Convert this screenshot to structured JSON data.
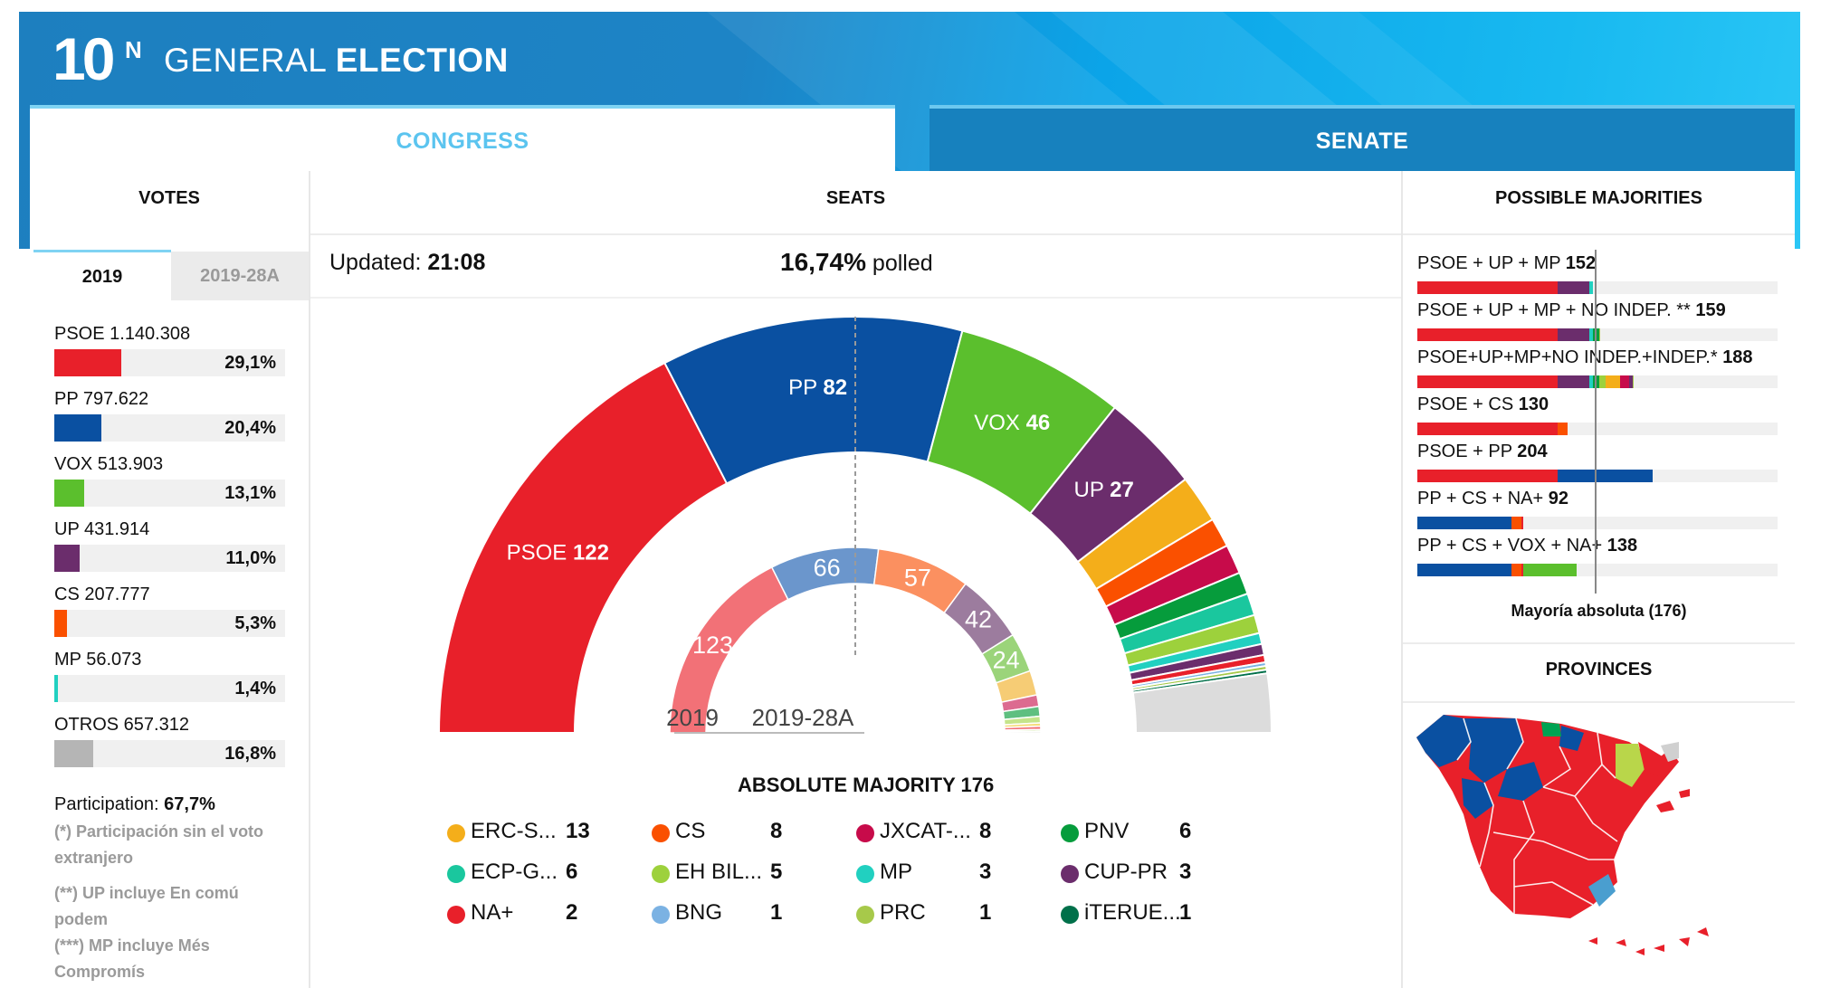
{
  "header": {
    "logo_number": "10",
    "logo_letter": "N",
    "title_light": "GENERAL ",
    "title_bold": "ELECTION"
  },
  "tabs": [
    {
      "label": "CONGRESS"
    },
    {
      "label": "SENATE"
    }
  ],
  "sections": {
    "votes": "VOTES",
    "seats": "SEATS",
    "majorities": "POSSIBLE MAJORITIES",
    "provinces": "PROVINCES"
  },
  "votes": {
    "tabs": [
      "2019",
      "2019-28A"
    ],
    "rows": [
      {
        "name": "PSOE",
        "votes": "1.140.308",
        "pct": "29,1%",
        "share": 29.1,
        "color": "#e8202a"
      },
      {
        "name": "PP",
        "votes": "797.622",
        "pct": "20,4%",
        "share": 20.4,
        "color": "#0a50a1"
      },
      {
        "name": "VOX",
        "votes": "513.903",
        "pct": "13,1%",
        "share": 13.1,
        "color": "#5bbf2d"
      },
      {
        "name": "UP",
        "votes": "431.914",
        "pct": "11,0%",
        "share": 11.0,
        "color": "#6b2d6c"
      },
      {
        "name": "CS",
        "votes": "207.777",
        "pct": "5,3%",
        "share": 5.3,
        "color": "#fa5000"
      },
      {
        "name": "MP",
        "votes": "56.073",
        "pct": "1,4%",
        "share": 1.4,
        "color": "#21d0c0"
      },
      {
        "name": "OTROS",
        "votes": "657.312",
        "pct": "16,8%",
        "share": 16.8,
        "color": "#b5b5b5"
      }
    ],
    "participation_label": "Participation: ",
    "participation_value": "67,7%",
    "notes": [
      "(*) Participación sin el voto extranjero",
      "(**) UP incluye En comú podem",
      "(***) MP incluye Més Compromís"
    ]
  },
  "seats": {
    "updated_label": "Updated: ",
    "updated_value": "21:08",
    "polled_value": "16,74%",
    "polled_label": " polled",
    "label_2019": "2019",
    "label_28a": "2019-28A",
    "absolute_majority": "ABSOLUTE MAJORITY  176"
  },
  "chart_data": {
    "type": "parliament-semicircle",
    "total_seats": 350,
    "majority": 176,
    "rings": [
      {
        "name": "2019",
        "values": [
          {
            "party": "PSOE",
            "seats": 122,
            "color": "#e8202a",
            "label": "PSOE"
          },
          {
            "party": "PP",
            "seats": 82,
            "color": "#0a50a1",
            "label": "PP"
          },
          {
            "party": "VOX",
            "seats": 46,
            "color": "#5bbf2d",
            "label": "VOX"
          },
          {
            "party": "UP",
            "seats": 27,
            "color": "#6b2d6c",
            "label": "UP"
          },
          {
            "party": "ERC-S",
            "seats": 13,
            "color": "#f4ae1a"
          },
          {
            "party": "CS",
            "seats": 8,
            "color": "#fa5000"
          },
          {
            "party": "JXCAT",
            "seats": 8,
            "color": "#c70b4a"
          },
          {
            "party": "PNV",
            "seats": 6,
            "color": "#069c3c"
          },
          {
            "party": "ECP-G",
            "seats": 6,
            "color": "#1ac79e"
          },
          {
            "party": "EH BIL",
            "seats": 5,
            "color": "#9dd13c"
          },
          {
            "party": "MP",
            "seats": 3,
            "color": "#21d0c0"
          },
          {
            "party": "CUP-PR",
            "seats": 3,
            "color": "#6b2d6c"
          },
          {
            "party": "NA+",
            "seats": 2,
            "color": "#e8202a"
          },
          {
            "party": "BNG",
            "seats": 1,
            "color": "#7bb2e3"
          },
          {
            "party": "PRC",
            "seats": 1,
            "color": "#a7c94a"
          },
          {
            "party": "iTERUEL",
            "seats": 1,
            "color": "#00704a"
          },
          {
            "party": "OTHERS",
            "seats": 16,
            "color": "#dcdcdc"
          }
        ]
      },
      {
        "name": "2019-28A",
        "values": [
          {
            "party": "PSOE",
            "seats": 123,
            "color": "#f27177",
            "label": "123"
          },
          {
            "party": "PP",
            "seats": 66,
            "color": "#6b96cc",
            "label": "66"
          },
          {
            "party": "CS",
            "seats": 57,
            "color": "#fb9060",
            "label": "57"
          },
          {
            "party": "UP",
            "seats": 42,
            "color": "#9c7c9e",
            "label": "42"
          },
          {
            "party": "VOX",
            "seats": 24,
            "color": "#9bd47a",
            "label": "24"
          },
          {
            "party": "ERC",
            "seats": 15,
            "color": "#f6cc75"
          },
          {
            "party": "JXCAT",
            "seats": 7,
            "color": "#dc6b90"
          },
          {
            "party": "PNV",
            "seats": 6,
            "color": "#5fbf80"
          },
          {
            "party": "EH BIL",
            "seats": 4,
            "color": "#c5e48a"
          },
          {
            "party": "CC",
            "seats": 2,
            "color": "#f6dc7a"
          },
          {
            "party": "NA+",
            "seats": 2,
            "color": "#f27177"
          },
          {
            "party": "PRC",
            "seats": 1,
            "color": "#c8de8e"
          },
          {
            "party": "OTHERS",
            "seats": 1,
            "color": "#dcdcdc"
          }
        ]
      }
    ]
  },
  "legend": [
    {
      "name": "ERC-S...",
      "seats": "13",
      "color": "#f4ae1a"
    },
    {
      "name": "CS",
      "seats": "8",
      "color": "#fa5000"
    },
    {
      "name": "JXCAT-...",
      "seats": "8",
      "color": "#c70b4a"
    },
    {
      "name": "PNV",
      "seats": "6",
      "color": "#069c3c"
    },
    {
      "name": "ECP-G...",
      "seats": "6",
      "color": "#1ac79e"
    },
    {
      "name": "EH BIL...",
      "seats": "5",
      "color": "#9dd13c"
    },
    {
      "name": "MP",
      "seats": "3",
      "color": "#21d0c0"
    },
    {
      "name": "CUP-PR",
      "seats": "3",
      "color": "#6b2d6c"
    },
    {
      "name": "NA+",
      "seats": "2",
      "color": "#e8202a"
    },
    {
      "name": "BNG",
      "seats": "1",
      "color": "#7bb2e3"
    },
    {
      "name": "PRC",
      "seats": "1",
      "color": "#a7c94a"
    },
    {
      "name": "iTERUE...",
      "seats": "1",
      "color": "#00704a"
    }
  ],
  "majorities": {
    "rows": [
      {
        "label": "PSOE + UP + MP ",
        "total": "152",
        "parts": [
          {
            "seats": 122,
            "color": "#e8202a"
          },
          {
            "seats": 27,
            "color": "#6b2d6c"
          },
          {
            "seats": 3,
            "color": "#21d0c0"
          }
        ]
      },
      {
        "label": "PSOE + UP + MP + NO INDEP. ** ",
        "total": "159",
        "parts": [
          {
            "seats": 122,
            "color": "#e8202a"
          },
          {
            "seats": 27,
            "color": "#6b2d6c"
          },
          {
            "seats": 3,
            "color": "#21d0c0"
          },
          {
            "seats": 6,
            "color": "#069c3c"
          },
          {
            "seats": 1,
            "color": "#a7c94a"
          }
        ]
      },
      {
        "label": "PSOE+UP+MP+NO INDEP.+INDEP.* ",
        "total": "188",
        "parts": [
          {
            "seats": 122,
            "color": "#e8202a"
          },
          {
            "seats": 27,
            "color": "#6b2d6c"
          },
          {
            "seats": 3,
            "color": "#21d0c0"
          },
          {
            "seats": 6,
            "color": "#069c3c"
          },
          {
            "seats": 5,
            "color": "#9dd13c"
          },
          {
            "seats": 13,
            "color": "#f4ae1a"
          },
          {
            "seats": 8,
            "color": "#c70b4a"
          },
          {
            "seats": 3,
            "color": "#6b2d6c"
          },
          {
            "seats": 1,
            "color": "#a7c94a"
          }
        ]
      },
      {
        "label": "PSOE + CS ",
        "total": "130",
        "parts": [
          {
            "seats": 122,
            "color": "#e8202a"
          },
          {
            "seats": 8,
            "color": "#fa5000"
          }
        ]
      },
      {
        "label": "PSOE + PP ",
        "total": "204",
        "parts": [
          {
            "seats": 122,
            "color": "#e8202a"
          },
          {
            "seats": 82,
            "color": "#0a50a1"
          }
        ]
      },
      {
        "label": "PP + CS + NA+ ",
        "total": "92",
        "parts": [
          {
            "seats": 82,
            "color": "#0a50a1"
          },
          {
            "seats": 8,
            "color": "#fa5000"
          },
          {
            "seats": 2,
            "color": "#e8202a"
          }
        ]
      },
      {
        "label": "PP + CS + VOX + NA+ ",
        "total": "138",
        "parts": [
          {
            "seats": 82,
            "color": "#0a50a1"
          },
          {
            "seats": 8,
            "color": "#fa5000"
          },
          {
            "seats": 2,
            "color": "#e8202a"
          },
          {
            "seats": 46,
            "color": "#5bbf2d"
          }
        ]
      }
    ],
    "scale_max": 350,
    "majority_caption": "Mayoría absoluta (176)"
  },
  "map": {
    "colors": {
      "psoe": "#e8202a",
      "pp": "#0a50a1",
      "vox": "#5bbf2d",
      "other": "#b9d64a",
      "bildu": "#00a352",
      "grey": "#d0d0d0",
      "murcia": "#4a9ecf"
    }
  }
}
